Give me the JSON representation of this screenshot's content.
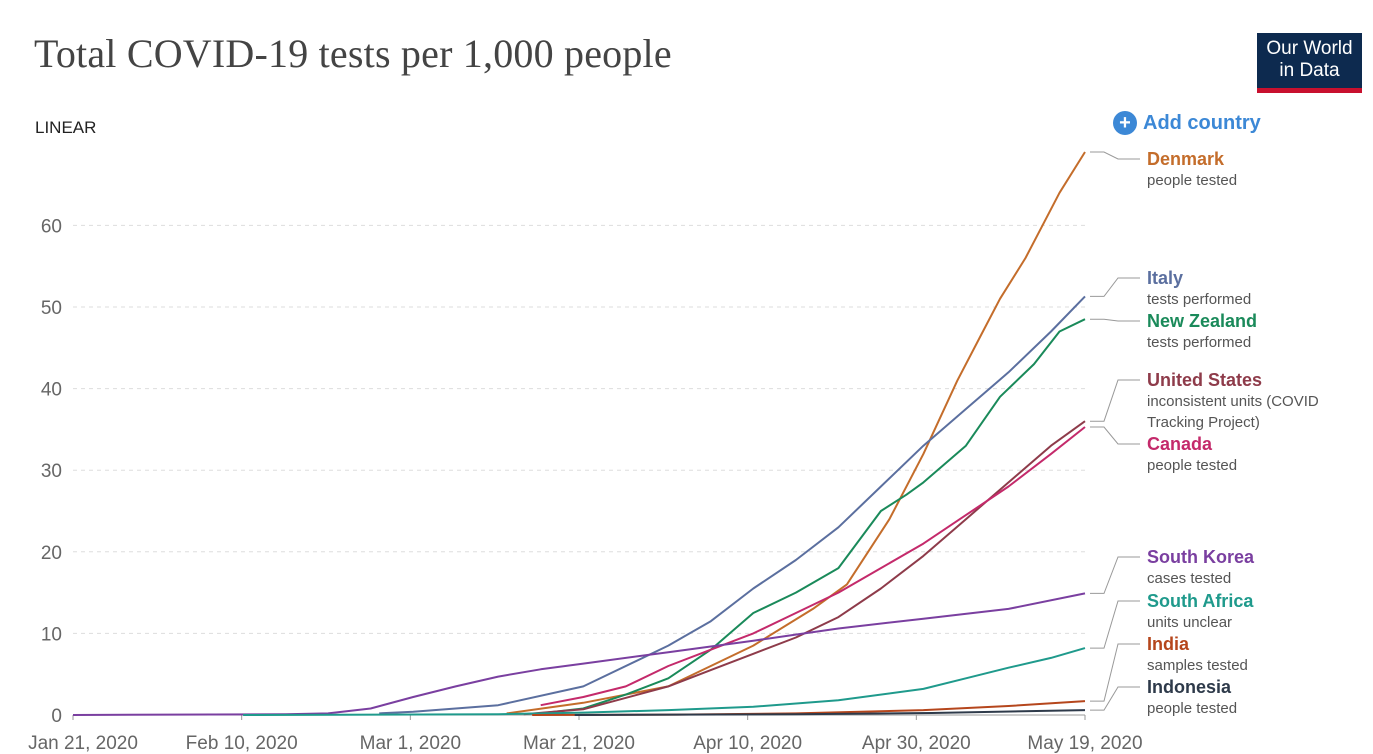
{
  "header": {
    "title": "Total COVID-19 tests per 1,000 people",
    "logo_line1": "Our World",
    "logo_line2": "in Data",
    "scale_toggle": "LINEAR",
    "add_country": "Add country"
  },
  "colors": {
    "Denmark": "#c46d2b",
    "Italy": "#5b6f9f",
    "New Zealand": "#1a8a5a",
    "United States": "#8e3b4a",
    "Canada": "#c42a6b",
    "South Korea": "#7a3fa0",
    "South Africa": "#1f9a8c",
    "India": "#b5461c",
    "Indonesia": "#2e3a4a"
  },
  "chart_data": {
    "type": "line",
    "title": "Total COVID-19 tests per 1,000 people",
    "xlabel": "",
    "ylabel": "",
    "x_ticks": [
      "Jan 21, 2020",
      "Feb 10, 2020",
      "Mar 1, 2020",
      "Mar 21, 2020",
      "Apr 10, 2020",
      "Apr 30, 2020",
      "May 19, 2020"
    ],
    "x_range": [
      "2020-01-21",
      "2020-05-19"
    ],
    "y_ticks": [
      0,
      10,
      20,
      30,
      40,
      50,
      60
    ],
    "ylim": [
      0,
      70
    ],
    "grid": "horizontal dashed",
    "legend": "right, labels at line ends",
    "series": [
      {
        "name": "Denmark",
        "note": "people tested",
        "points": [
          [
            "2020-03-12",
            0.2
          ],
          [
            "2020-03-21",
            1.5
          ],
          [
            "2020-03-31",
            3.5
          ],
          [
            "2020-04-10",
            8.5
          ],
          [
            "2020-04-17",
            13
          ],
          [
            "2020-04-21",
            16
          ],
          [
            "2020-04-26",
            24
          ],
          [
            "2020-04-30",
            32
          ],
          [
            "2020-05-04",
            41
          ],
          [
            "2020-05-07",
            47
          ],
          [
            "2020-05-09",
            51
          ],
          [
            "2020-05-12",
            56
          ],
          [
            "2020-05-14",
            60
          ],
          [
            "2020-05-16",
            64
          ],
          [
            "2020-05-19",
            69
          ]
        ]
      },
      {
        "name": "Italy",
        "note": "tests performed",
        "points": [
          [
            "2020-02-26",
            0.2
          ],
          [
            "2020-03-01",
            0.4
          ],
          [
            "2020-03-11",
            1.2
          ],
          [
            "2020-03-21",
            3.5
          ],
          [
            "2020-03-31",
            8.5
          ],
          [
            "2020-04-05",
            11.5
          ],
          [
            "2020-04-10",
            15.5
          ],
          [
            "2020-04-15",
            19
          ],
          [
            "2020-04-20",
            23
          ],
          [
            "2020-04-25",
            28
          ],
          [
            "2020-04-30",
            33
          ],
          [
            "2020-05-05",
            37.5
          ],
          [
            "2020-05-10",
            42
          ],
          [
            "2020-05-15",
            47
          ],
          [
            "2020-05-19",
            51.3
          ]
        ]
      },
      {
        "name": "New Zealand",
        "note": "tests performed",
        "points": [
          [
            "2020-03-15",
            0.1
          ],
          [
            "2020-03-21",
            0.8
          ],
          [
            "2020-03-26",
            2.5
          ],
          [
            "2020-03-31",
            4.5
          ],
          [
            "2020-04-05",
            8
          ],
          [
            "2020-04-10",
            12.5
          ],
          [
            "2020-04-15",
            15
          ],
          [
            "2020-04-20",
            18
          ],
          [
            "2020-04-25",
            25
          ],
          [
            "2020-04-28",
            27
          ],
          [
            "2020-04-30",
            28.5
          ],
          [
            "2020-05-05",
            33
          ],
          [
            "2020-05-09",
            39
          ],
          [
            "2020-05-13",
            43
          ],
          [
            "2020-05-16",
            47
          ],
          [
            "2020-05-19",
            48.5
          ]
        ]
      },
      {
        "name": "United States",
        "note": "inconsistent units (COVID Tracking Project)",
        "points": [
          [
            "2020-03-14",
            0.1
          ],
          [
            "2020-03-21",
            0.7
          ],
          [
            "2020-03-31",
            3.5
          ],
          [
            "2020-04-05",
            5.5
          ],
          [
            "2020-04-10",
            7.5
          ],
          [
            "2020-04-15",
            9.5
          ],
          [
            "2020-04-20",
            12
          ],
          [
            "2020-04-25",
            15.5
          ],
          [
            "2020-04-30",
            19.5
          ],
          [
            "2020-05-05",
            24
          ],
          [
            "2020-05-10",
            28.5
          ],
          [
            "2020-05-15",
            33
          ],
          [
            "2020-05-19",
            36
          ]
        ]
      },
      {
        "name": "Canada",
        "note": "people tested",
        "points": [
          [
            "2020-03-16",
            1.2
          ],
          [
            "2020-03-21",
            2.2
          ],
          [
            "2020-03-26",
            3.5
          ],
          [
            "2020-03-31",
            6
          ],
          [
            "2020-04-05",
            8
          ],
          [
            "2020-04-10",
            10
          ],
          [
            "2020-04-15",
            12.5
          ],
          [
            "2020-04-20",
            15
          ],
          [
            "2020-04-25",
            18
          ],
          [
            "2020-04-30",
            21
          ],
          [
            "2020-05-05",
            24.5
          ],
          [
            "2020-05-10",
            28
          ],
          [
            "2020-05-15",
            32
          ],
          [
            "2020-05-19",
            35.3
          ]
        ]
      },
      {
        "name": "South Korea",
        "note": "cases tested",
        "points": [
          [
            "2020-01-21",
            0
          ],
          [
            "2020-02-15",
            0.1
          ],
          [
            "2020-02-20",
            0.2
          ],
          [
            "2020-02-25",
            0.8
          ],
          [
            "2020-03-01",
            2.2
          ],
          [
            "2020-03-06",
            3.5
          ],
          [
            "2020-03-11",
            4.7
          ],
          [
            "2020-03-16",
            5.6
          ],
          [
            "2020-03-21",
            6.3
          ],
          [
            "2020-03-31",
            7.7
          ],
          [
            "2020-04-10",
            9.1
          ],
          [
            "2020-04-20",
            10.6
          ],
          [
            "2020-04-30",
            11.8
          ],
          [
            "2020-05-10",
            13
          ],
          [
            "2020-05-19",
            14.9
          ]
        ]
      },
      {
        "name": "South Africa",
        "note": "units unclear",
        "points": [
          [
            "2020-02-10",
            0
          ],
          [
            "2020-03-11",
            0.1
          ],
          [
            "2020-03-21",
            0.3
          ],
          [
            "2020-03-31",
            0.6
          ],
          [
            "2020-04-10",
            1
          ],
          [
            "2020-04-20",
            1.8
          ],
          [
            "2020-04-30",
            3.2
          ],
          [
            "2020-05-05",
            4.5
          ],
          [
            "2020-05-10",
            5.8
          ],
          [
            "2020-05-15",
            7
          ],
          [
            "2020-05-19",
            8.2
          ]
        ]
      },
      {
        "name": "India",
        "note": "samples tested",
        "points": [
          [
            "2020-03-15",
            0
          ],
          [
            "2020-04-01",
            0.05
          ],
          [
            "2020-04-15",
            0.2
          ],
          [
            "2020-04-30",
            0.6
          ],
          [
            "2020-05-10",
            1.1
          ],
          [
            "2020-05-19",
            1.7
          ]
        ]
      },
      {
        "name": "Indonesia",
        "note": "people tested",
        "points": [
          [
            "2020-03-20",
            0
          ],
          [
            "2020-04-15",
            0.1
          ],
          [
            "2020-05-01",
            0.25
          ],
          [
            "2020-05-19",
            0.6
          ]
        ]
      }
    ]
  }
}
